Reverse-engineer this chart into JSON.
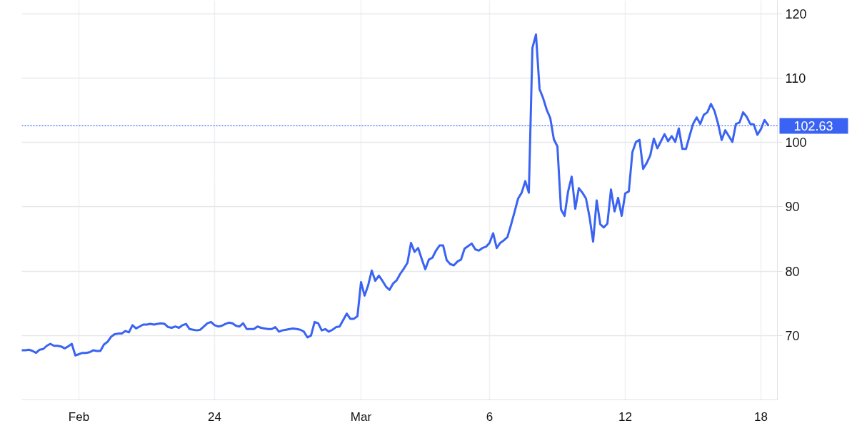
{
  "chart_data": {
    "type": "line",
    "color": "#3a63f3",
    "categories": [
      null,
      null,
      null,
      null,
      null,
      null,
      null,
      null,
      null,
      null,
      null,
      null,
      null,
      null,
      null,
      null,
      "Feb",
      null,
      null,
      null,
      null,
      null,
      null,
      null,
      null,
      null,
      null,
      null,
      null,
      null,
      null,
      null,
      null,
      null,
      null,
      null,
      null,
      null,
      null,
      null,
      null,
      null,
      null,
      null,
      null,
      null,
      null,
      null,
      null,
      null,
      null,
      null,
      null,
      null,
      "24",
      null,
      null,
      null,
      null,
      null,
      null,
      null,
      null,
      null,
      null,
      null,
      null,
      null,
      null,
      null,
      null,
      null,
      null,
      null,
      null,
      null,
      null,
      null,
      null,
      null,
      null,
      null,
      null,
      null,
      null,
      null,
      null,
      null,
      null,
      null,
      null,
      null,
      null,
      null,
      null,
      "Mar",
      null,
      null,
      null,
      null,
      null,
      null,
      null,
      null,
      null,
      null,
      null,
      null,
      null,
      null,
      null,
      null,
      null,
      null,
      null,
      null,
      null,
      null,
      null,
      null,
      null,
      null,
      null,
      null,
      null,
      null,
      null,
      null,
      null,
      null,
      null,
      "6",
      null,
      null,
      null,
      null,
      null,
      null,
      null,
      null,
      null,
      null,
      null,
      null,
      null,
      null,
      null,
      null,
      null,
      null,
      null,
      null,
      null,
      null,
      null,
      null,
      null,
      null,
      null,
      null,
      null,
      null,
      null,
      null,
      null,
      null,
      null,
      null,
      null,
      "12",
      null,
      null,
      null,
      null,
      null,
      null,
      null,
      null,
      null,
      null,
      null,
      null,
      null,
      null,
      null,
      null,
      null,
      null,
      null,
      null,
      null,
      null,
      null,
      null,
      null,
      null,
      null,
      null,
      null,
      null,
      null,
      null,
      null,
      null,
      null,
      null,
      null,
      "18",
      null,
      null
    ],
    "values": [
      67.7,
      67.7,
      67.8,
      67.6,
      67.3,
      67.8,
      67.9,
      68.4,
      68.7,
      68.4,
      68.4,
      68.3,
      68.0,
      68.3,
      68.7,
      66.9,
      67.1,
      67.3,
      67.3,
      67.4,
      67.7,
      67.6,
      67.6,
      68.6,
      69.0,
      69.8,
      70.2,
      70.3,
      70.3,
      70.7,
      70.5,
      71.6,
      71.1,
      71.4,
      71.7,
      71.7,
      71.8,
      71.7,
      71.8,
      71.9,
      71.8,
      71.3,
      71.2,
      71.4,
      71.2,
      71.6,
      71.8,
      71.0,
      70.9,
      70.8,
      70.9,
      71.4,
      71.9,
      72.1,
      71.6,
      71.4,
      71.5,
      71.8,
      72.0,
      71.9,
      71.5,
      71.4,
      71.9,
      71.0,
      71.0,
      71.0,
      71.4,
      71.2,
      71.1,
      71.0,
      71.0,
      71.3,
      70.6,
      70.8,
      70.9,
      71.0,
      71.1,
      71.0,
      70.9,
      70.6,
      69.7,
      70.0,
      72.1,
      71.9,
      70.8,
      71.0,
      70.6,
      70.9,
      71.3,
      71.4,
      72.4,
      73.4,
      72.6,
      72.6,
      73.0,
      78.3,
      76.2,
      77.8,
      80.1,
      78.5,
      79.3,
      78.5,
      77.6,
      77.1,
      78.1,
      78.6,
      79.6,
      80.4,
      81.3,
      84.4,
      83.0,
      83.6,
      81.9,
      80.3,
      81.8,
      82.1,
      83.2,
      84.0,
      84.0,
      81.7,
      81.1,
      80.9,
      81.5,
      81.8,
      83.5,
      83.9,
      84.3,
      83.4,
      83.2,
      83.6,
      83.8,
      84.4,
      85.9,
      83.6,
      84.4,
      84.8,
      85.3,
      87.2,
      89.2,
      91.3,
      92.2,
      94.0,
      92.2,
      114.7,
      116.8,
      108.3,
      106.9,
      105.1,
      103.8,
      100.5,
      99.4,
      89.6,
      88.6,
      92.4,
      94.7,
      89.7,
      92.9,
      92.2,
      91.3,
      88.4,
      84.6,
      91.0,
      87.3,
      86.8,
      87.4,
      92.7,
      89.3,
      91.4,
      88.6,
      92.1,
      92.4,
      98.5,
      100.1,
      100.4,
      95.9,
      96.8,
      98.0,
      100.6,
      99.1,
      100.2,
      101.3,
      100.2,
      101.0,
      100.1,
      102.2,
      99.0,
      99.0,
      101.0,
      102.9,
      103.9,
      102.9,
      104.3,
      104.7,
      106.0,
      104.9,
      102.9,
      100.4,
      101.9,
      101.0,
      100.1,
      102.9,
      103.1,
      104.7,
      104.0,
      102.9,
      102.8,
      101.2,
      102.1,
      103.5,
      102.7
    ],
    "ylim": [
      60,
      122.1
    ],
    "yticks": [
      70,
      80,
      90,
      100,
      110,
      120
    ],
    "grid": true,
    "ref_lines": [
      {
        "axis": "y",
        "value": 102.63,
        "label": "102.63",
        "color": "#3a63f3",
        "line_style": "dotted"
      }
    ]
  }
}
